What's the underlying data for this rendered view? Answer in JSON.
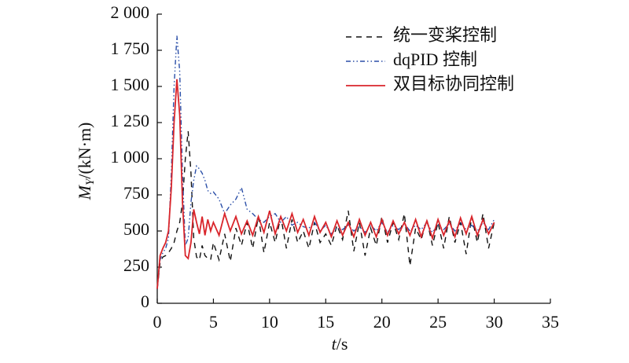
{
  "chart_data": {
    "type": "line",
    "x_label": {
      "symbol": "t",
      "unit": "/s"
    },
    "y_label": {
      "symbol": "M",
      "subscript": "Y",
      "unit": "/(kN·m)"
    },
    "x": [
      0,
      0.25,
      0.5,
      0.75,
      1,
      1.25,
      1.5,
      1.75,
      2,
      2.25,
      2.5,
      2.75,
      3,
      3.25,
      3.5,
      3.75,
      4,
      4.25,
      4.5,
      4.75,
      5,
      5.5,
      6,
      6.5,
      7,
      7.5,
      8,
      8.5,
      9,
      9.5,
      10,
      10.5,
      11,
      11.5,
      12,
      12.5,
      13,
      13.5,
      14,
      14.5,
      15,
      15.5,
      16,
      16.5,
      17,
      17.5,
      18,
      18.5,
      19,
      19.5,
      20,
      20.5,
      21,
      21.5,
      22,
      22.5,
      23,
      23.5,
      24,
      24.5,
      25,
      25.5,
      26,
      26.5,
      27,
      27.5,
      28,
      28.5,
      29,
      29.5,
      30
    ],
    "series": [
      {
        "name": "统一变桨控制",
        "color": "#111111",
        "line_style": "dashed",
        "values": [
          100,
          280,
          320,
          330,
          350,
          380,
          420,
          500,
          560,
          700,
          1000,
          1190,
          900,
          450,
          320,
          300,
          400,
          330,
          310,
          300,
          420,
          300,
          480,
          290,
          520,
          400,
          560,
          380,
          600,
          350,
          560,
          420,
          600,
          380,
          580,
          420,
          500,
          380,
          560,
          420,
          480,
          400,
          540,
          440,
          640,
          360,
          560,
          330,
          520,
          400,
          600,
          420,
          560,
          440,
          620,
          260,
          520,
          440,
          580,
          400,
          560,
          380,
          600,
          420,
          560,
          340,
          600,
          420,
          620,
          380,
          560
        ]
      },
      {
        "name": "dqPID 控制",
        "color": "#2b4fa8",
        "line_style": "dashdot",
        "values": [
          100,
          300,
          350,
          380,
          450,
          900,
          1500,
          1850,
          1600,
          900,
          400,
          450,
          700,
          850,
          950,
          930,
          900,
          850,
          780,
          760,
          770,
          720,
          620,
          680,
          720,
          800,
          650,
          620,
          580,
          560,
          600,
          620,
          560,
          600,
          540,
          560,
          530,
          520,
          560,
          500,
          540,
          480,
          520,
          510,
          540,
          500,
          530,
          490,
          540,
          500,
          560,
          490,
          540,
          510,
          550,
          500,
          540,
          510,
          560,
          490,
          540,
          510,
          550,
          500,
          560,
          510,
          540,
          500,
          560,
          510,
          580
        ]
      },
      {
        "name": "双目标协同控制",
        "color": "#d9252b",
        "line_style": "solid",
        "values": [
          100,
          330,
          380,
          420,
          500,
          800,
          1250,
          1550,
          1300,
          700,
          330,
          310,
          420,
          650,
          560,
          480,
          600,
          470,
          580,
          500,
          560,
          470,
          620,
          500,
          600,
          480,
          570,
          470,
          600,
          490,
          640,
          480,
          600,
          500,
          620,
          490,
          580,
          470,
          600,
          490,
          560,
          460,
          570,
          470,
          560,
          460,
          580,
          470,
          560,
          460,
          580,
          470,
          570,
          480,
          560,
          470,
          580,
          460,
          570,
          450,
          580,
          470,
          570,
          460,
          590,
          480,
          600,
          470,
          580,
          480,
          560
        ]
      }
    ],
    "xlim": [
      0,
      35
    ],
    "xticks": [
      0,
      5,
      10,
      15,
      20,
      25,
      30,
      35
    ],
    "ylim": [
      0,
      2000
    ],
    "yticks": [
      0,
      250,
      500,
      750,
      {
        "value": 1000,
        "label": "1 000"
      },
      {
        "value": 1250,
        "label": "1 250"
      },
      {
        "value": 1500,
        "label": "1 500"
      },
      {
        "value": 1750,
        "label": "1 750"
      },
      {
        "value": 2000,
        "label": "2 000"
      }
    ],
    "legend": "upper right"
  }
}
